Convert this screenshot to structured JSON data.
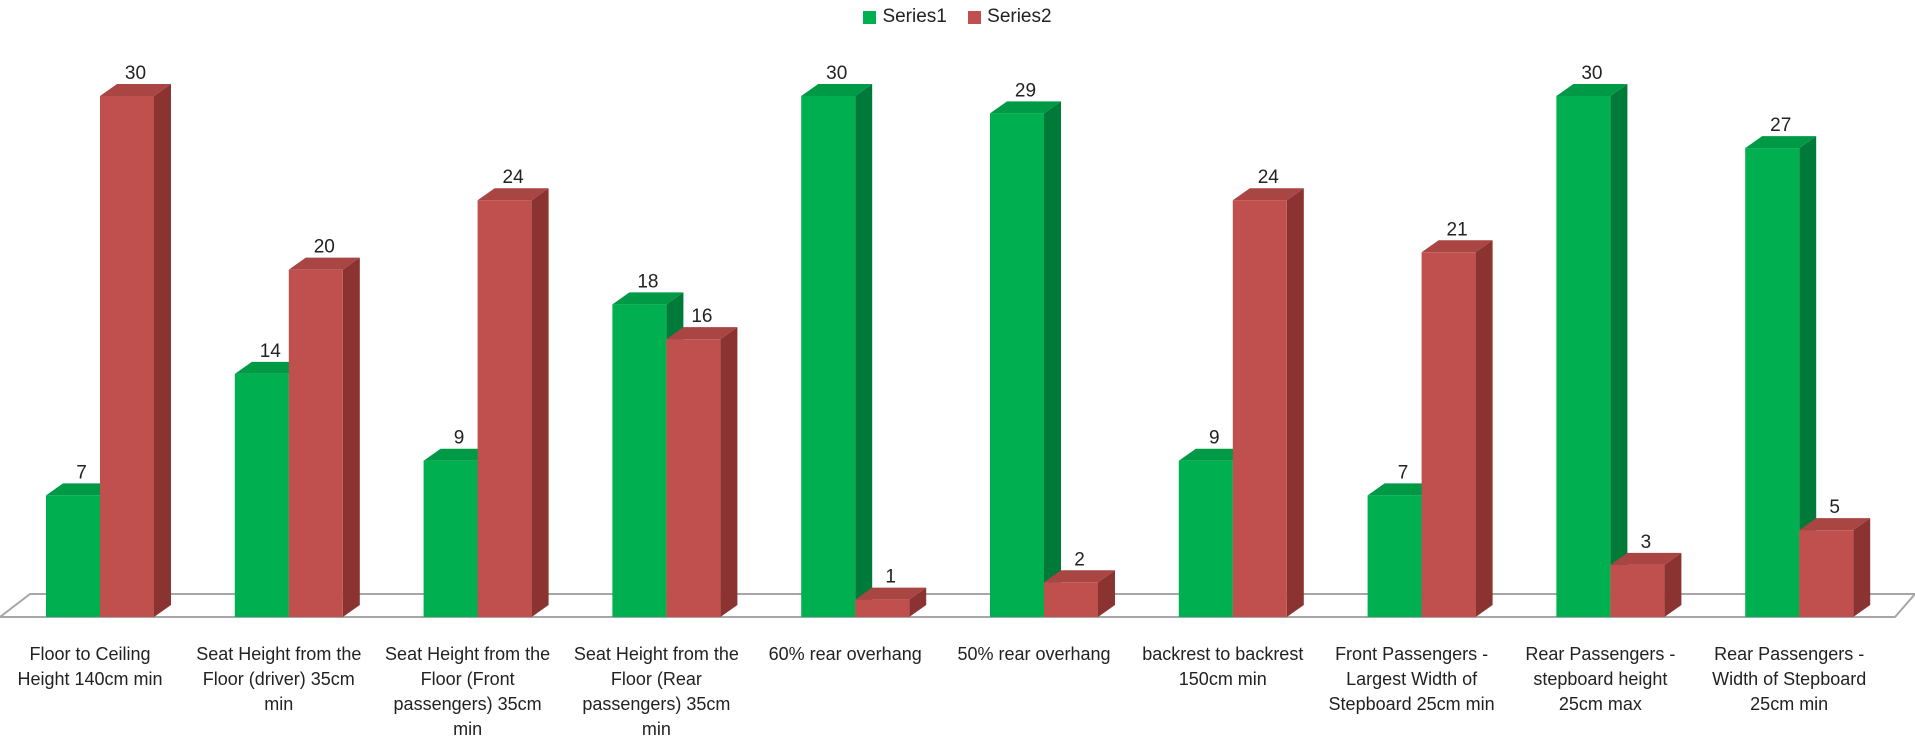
{
  "chart_data": {
    "type": "bar",
    "title": "",
    "xlabel": "",
    "ylabel": "",
    "ylim": [
      0,
      30
    ],
    "grid": false,
    "legend_position": "top-center",
    "categories": [
      "Floor to Ceiling Height 140cm min",
      "Seat Height from the Floor (driver) 35cm min",
      "Seat Height from the Floor (Front passengers) 35cm min",
      "Seat Height from the Floor (Rear passengers) 35cm min",
      "60% rear overhang",
      "50% rear overhang",
      "backrest to backrest 150cm min",
      "Front Passengers - Largest Width of Stepboard 25cm min",
      "Rear Passengers - stepboard height 25cm max",
      "Rear Passengers - Width of Stepboard 25cm min"
    ],
    "series": [
      {
        "name": "Series1",
        "color": "#00b050",
        "values": [
          7,
          14,
          9,
          18,
          30,
          29,
          9,
          7,
          30,
          27
        ]
      },
      {
        "name": "Series2",
        "color": "#c0504d",
        "values": [
          30,
          20,
          24,
          16,
          1,
          2,
          24,
          21,
          3,
          5
        ]
      }
    ]
  }
}
